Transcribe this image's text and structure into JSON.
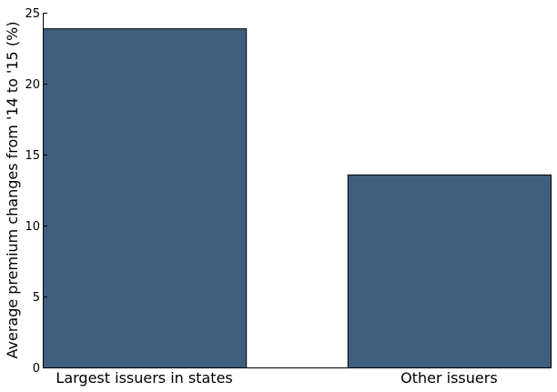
{
  "chart_data": {
    "type": "bar",
    "title": "",
    "xlabel": "",
    "ylabel": "Average premium changes from '14 to '15 (%)",
    "categories": [
      "Largest issuers in states",
      "Other issuers"
    ],
    "values": [
      23.9,
      13.6
    ],
    "ylim": [
      0,
      25
    ],
    "yticks": [
      "0",
      "5",
      "10",
      "15",
      "20",
      "25"
    ],
    "grid": false,
    "bar_color": "#3f5f7f",
    "bar_edge_color": "#000000"
  }
}
